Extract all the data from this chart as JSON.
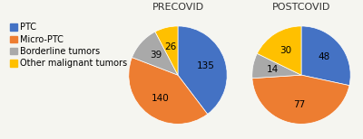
{
  "precovid": {
    "title": "PRECOVID",
    "values": [
      135,
      140,
      39,
      26
    ],
    "labels": [
      "135",
      "140",
      "39",
      "26"
    ],
    "colors": [
      "#4472C4",
      "#ED7D31",
      "#A9A9A9",
      "#FFC000"
    ]
  },
  "postcovid": {
    "title": "POSTCOVID",
    "values": [
      48,
      77,
      14,
      30
    ],
    "labels": [
      "48",
      "77",
      "14",
      "30"
    ],
    "colors": [
      "#4472C4",
      "#ED7D31",
      "#A9A9A9",
      "#FFC000"
    ]
  },
  "legend_labels": [
    "PTC",
    "Micro-PTC",
    "Borderline tumors",
    "Other malignant tumors"
  ],
  "legend_colors": [
    "#4472C4",
    "#ED7D31",
    "#A9A9A9",
    "#FFC000"
  ],
  "background_color": "#F5F5F0",
  "title_fontsize": 8,
  "label_fontsize": 7.5,
  "legend_fontsize": 7.0
}
